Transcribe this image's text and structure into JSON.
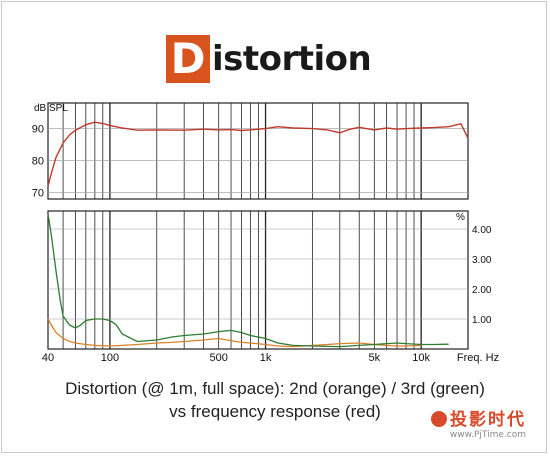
{
  "title": {
    "badge_letter": "D",
    "rest": "istortion"
  },
  "captions": {
    "line1": "Distortion (@ 1m, full space): 2nd (orange) / 3rd (green)",
    "line2": "vs frequency response (red)"
  },
  "watermark": {
    "text": "投影时代",
    "url": "www.PjTime.com"
  },
  "colors": {
    "frequency_response": "#c0392b",
    "second_harmonic": "#d9822b",
    "third_harmonic": "#2e7d32",
    "grid": "#222222",
    "badge": "#d9531e"
  },
  "chart_data": [
    {
      "type": "line",
      "name": "frequency response",
      "ylabel": "dB SPL",
      "xscale": "log",
      "xlim": [
        40,
        20000
      ],
      "ylim": [
        68,
        98
      ],
      "yticks": [
        70,
        80,
        90
      ],
      "grid": true,
      "series": [
        {
          "name": "",
          "color": "red",
          "x": [
            40,
            42,
            45,
            50,
            55,
            60,
            70,
            80,
            90,
            100,
            120,
            150,
            200,
            300,
            400,
            500,
            600,
            700,
            800,
            1000,
            1200,
            1500,
            2000,
            2500,
            3000,
            3500,
            4000,
            5000,
            6000,
            7000,
            8000,
            10000,
            12000,
            15000,
            18000,
            20000
          ],
          "y": [
            72,
            76,
            81,
            85.5,
            88,
            89.5,
            91.2,
            92,
            91.6,
            91,
            90.2,
            89.5,
            89.6,
            89.5,
            89.8,
            89.6,
            89.7,
            89.4,
            89.6,
            90,
            90.6,
            90.2,
            90,
            89.6,
            88.7,
            89.8,
            90.4,
            89.6,
            90.2,
            89.8,
            90,
            90.2,
            90.3,
            90.6,
            91.5,
            87
          ]
        }
      ]
    },
    {
      "type": "line",
      "name": "distortion",
      "xlabel": "Freq. Hz",
      "ylabel": "%",
      "xscale": "log",
      "xlim": [
        40,
        20000
      ],
      "ylim": [
        0,
        4.6
      ],
      "xticks": [
        "40",
        "100",
        "500",
        "1k",
        "5k",
        "10k"
      ],
      "yticks": [
        "1.00",
        "2.00",
        "3.00",
        "4.00"
      ],
      "grid": true,
      "series": [
        {
          "name": "2nd",
          "color": "orange",
          "x": [
            40,
            42,
            45,
            50,
            55,
            60,
            70,
            80,
            100,
            120,
            150,
            200,
            250,
            300,
            400,
            500,
            600,
            700,
            800,
            1000,
            1200,
            1500,
            2000,
            2500,
            3000,
            4000,
            5000,
            6000,
            7000,
            8000,
            10000
          ],
          "y": [
            1.0,
            0.8,
            0.55,
            0.35,
            0.25,
            0.2,
            0.15,
            0.12,
            0.1,
            0.12,
            0.15,
            0.2,
            0.22,
            0.25,
            0.3,
            0.35,
            0.28,
            0.22,
            0.2,
            0.15,
            0.1,
            0.08,
            0.12,
            0.15,
            0.18,
            0.2,
            0.15,
            0.12,
            0.1,
            0.1,
            0.12
          ]
        },
        {
          "name": "3rd",
          "color": "green",
          "x": [
            40,
            42,
            45,
            48,
            50,
            55,
            60,
            65,
            70,
            80,
            90,
            100,
            110,
            120,
            150,
            200,
            250,
            300,
            400,
            500,
            600,
            700,
            800,
            1000,
            1200,
            1500,
            2000,
            3000,
            4000,
            5000,
            6000,
            7000,
            8000,
            10000,
            12000,
            15000
          ],
          "y": [
            4.5,
            3.8,
            2.6,
            1.6,
            1.1,
            0.8,
            0.7,
            0.8,
            0.95,
            1.0,
            1.0,
            0.95,
            0.8,
            0.5,
            0.25,
            0.3,
            0.4,
            0.45,
            0.5,
            0.58,
            0.62,
            0.55,
            0.45,
            0.35,
            0.2,
            0.12,
            0.1,
            0.08,
            0.12,
            0.15,
            0.18,
            0.2,
            0.18,
            0.15,
            0.15,
            0.16
          ]
        }
      ]
    }
  ]
}
